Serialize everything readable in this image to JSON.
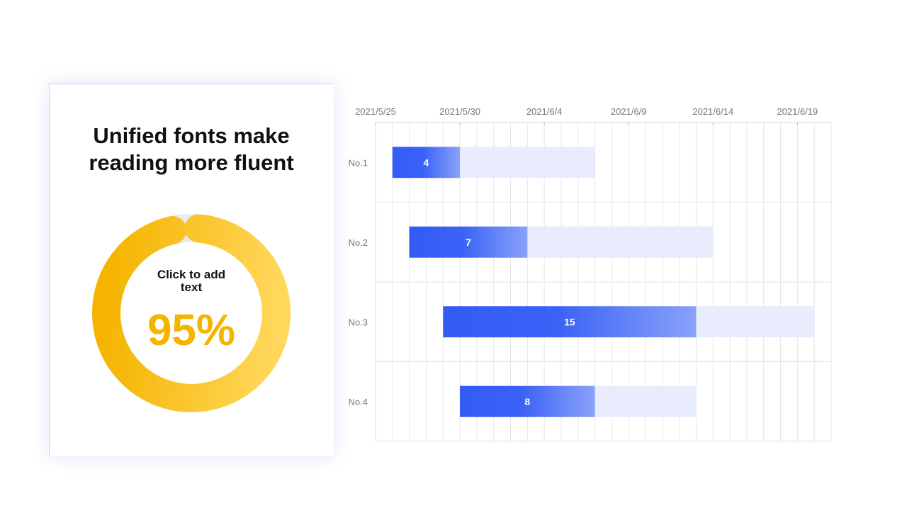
{
  "card": {
    "title_line1": "Unified fonts make",
    "title_line2": "reading more fluent",
    "donut_label": "Click to add text",
    "donut_value_text": "95%",
    "donut_percent": 95,
    "colors": {
      "ring_top": "#f5b400",
      "ring_bottom": "#ffd75a",
      "track": "#ebebee",
      "value_text": "#f5b400"
    }
  },
  "chart_data": {
    "type": "bar",
    "orientation": "horizontal",
    "x_axis_type": "date",
    "x_ticks": [
      "2021/5/25",
      "2021/5/30",
      "2021/6/4",
      "2021/6/9",
      "2021/6/14",
      "2021/6/19"
    ],
    "x_range": [
      "2021/5/25",
      "2021/6/21"
    ],
    "grid": true,
    "categories": [
      "No.1",
      "No.2",
      "No.3",
      "No.4"
    ],
    "series": [
      {
        "role": "completed",
        "starts": [
          "2021/5/26",
          "2021/5/27",
          "2021/5/29",
          "2021/5/30"
        ],
        "values": [
          4,
          7,
          15,
          8
        ],
        "color": "#335cf5"
      },
      {
        "role": "remaining",
        "ends": [
          "2021/6/7",
          "2021/6/14",
          "2021/6/20",
          "2021/6/13"
        ],
        "color": "#e8ecfc"
      }
    ]
  }
}
